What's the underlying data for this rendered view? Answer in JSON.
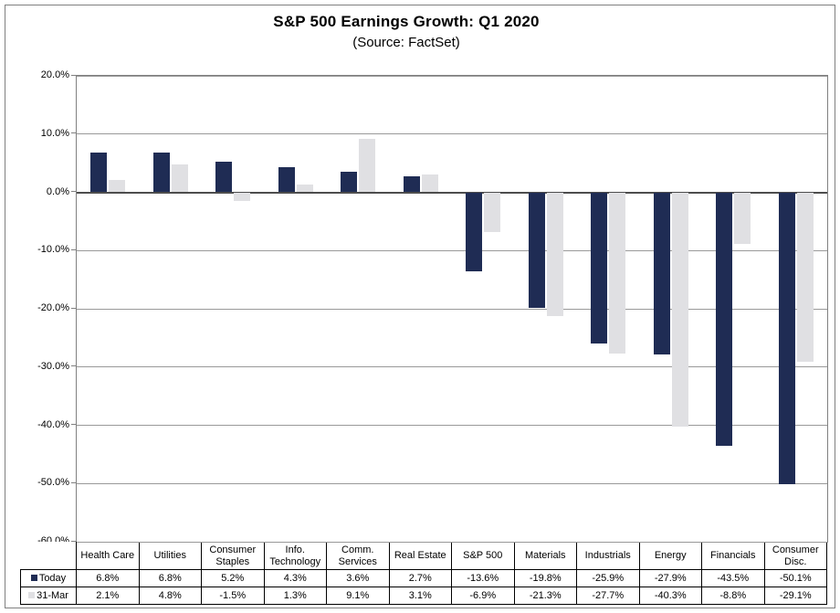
{
  "header": {
    "title": "S&P 500 Earnings Growth: Q1 2020",
    "subtitle": "(Source: FactSet)"
  },
  "colors": {
    "series_today": "#1F2C54",
    "series_31mar": "#E0E0E3",
    "gridline": "#999999",
    "zero_axis": "#4D4D4D",
    "plot_border": "#808080",
    "table_border": "#000000"
  },
  "chart_data": {
    "type": "bar",
    "title": "S&P 500 Earnings Growth: Q1 2020",
    "subtitle": "(Source: FactSet)",
    "categories": [
      "Health Care",
      "Utilities",
      "Consumer Staples",
      "Info. Technology",
      "Comm. Services",
      "Real Estate",
      "S&P 500",
      "Materials",
      "Industrials",
      "Energy",
      "Financials",
      "Consumer Disc."
    ],
    "series": [
      {
        "name": "Today",
        "color": "#1F2C54",
        "values": [
          6.8,
          6.8,
          5.2,
          4.3,
          3.6,
          2.7,
          -13.6,
          -19.8,
          -25.9,
          -27.9,
          -43.5,
          -50.1
        ]
      },
      {
        "name": "31-Mar",
        "color": "#E0E0E3",
        "values": [
          2.1,
          4.8,
          -1.5,
          1.3,
          9.1,
          3.1,
          -6.9,
          -21.3,
          -27.7,
          -40.3,
          -8.8,
          -29.1
        ]
      }
    ],
    "xlabel": "",
    "ylabel": "",
    "ylim": [
      -60,
      20
    ],
    "ytick_step": 10,
    "ytick_labels": [
      "20.0%",
      "10.0%",
      "0.0%",
      "-10.0%",
      "-20.0%",
      "-30.0%",
      "-40.0%",
      "-50.0%",
      "-60.0%"
    ],
    "grid": true,
    "legend_position": "data-table-left"
  },
  "data_table": {
    "column_headers": [
      "Health Care",
      "Utilities",
      "Consumer Staples",
      "Info. Technology",
      "Comm. Services",
      "Real Estate",
      "S&P 500",
      "Materials",
      "Industrials",
      "Energy",
      "Financials",
      "Consumer Disc."
    ],
    "rows": [
      {
        "label": "Today",
        "swatch_color": "#1F2C54",
        "values": [
          "6.8%",
          "6.8%",
          "5.2%",
          "4.3%",
          "3.6%",
          "2.7%",
          "-13.6%",
          "-19.8%",
          "-25.9%",
          "-27.9%",
          "-43.5%",
          "-50.1%"
        ]
      },
      {
        "label": "31-Mar",
        "swatch_color": "#E0E0E3",
        "values": [
          "2.1%",
          "4.8%",
          "-1.5%",
          "1.3%",
          "9.1%",
          "3.1%",
          "-6.9%",
          "-21.3%",
          "-27.7%",
          "-40.3%",
          "-8.8%",
          "-29.1%"
        ]
      }
    ]
  }
}
